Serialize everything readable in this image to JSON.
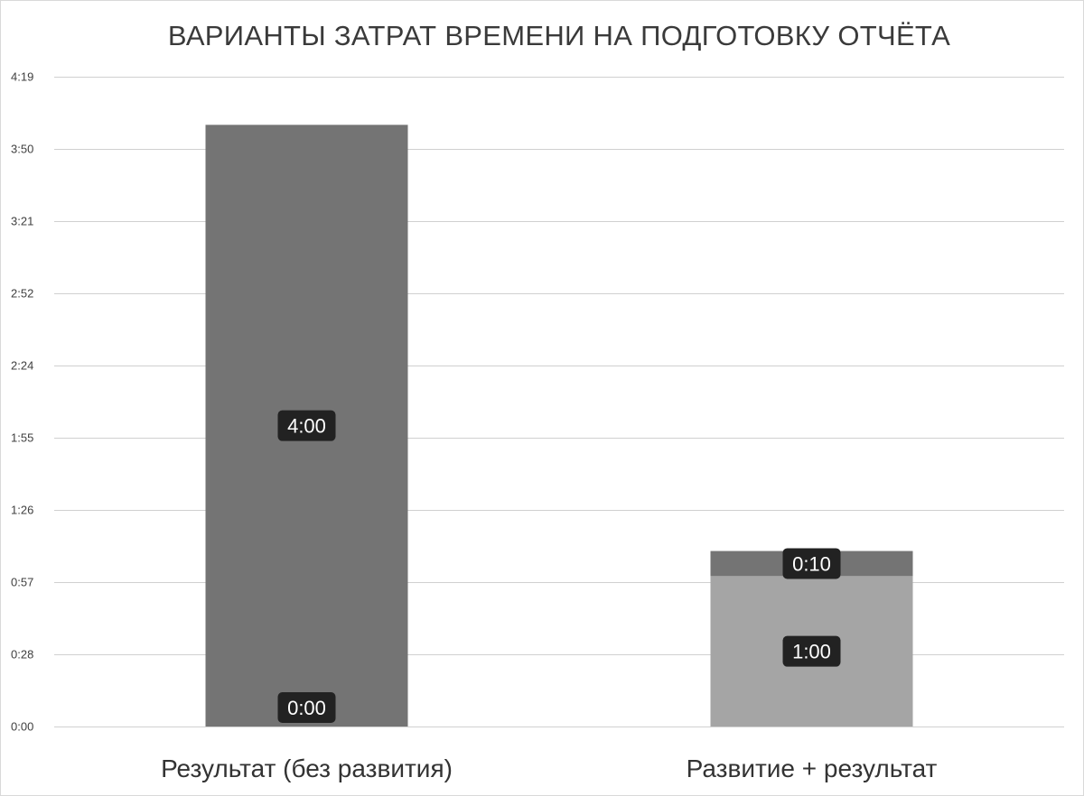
{
  "chart_data": {
    "type": "bar",
    "stacked": true,
    "title": "ВАРИАНТЫ ЗАТРАТ ВРЕМЕНИ НА ПОДГОТОВКУ ОТЧЁТА",
    "xlabel": "",
    "ylabel": "",
    "categories": [
      "Результат (без развития)",
      "Развитие + результат"
    ],
    "y_unit": "minutes",
    "ylim": [
      0,
      259
    ],
    "y_ticks": [
      0,
      28.8,
      57.6,
      86.4,
      115.2,
      144,
      172.8,
      201.6,
      230.4,
      259.2
    ],
    "y_tick_labels": [
      "0:00",
      "0:28",
      "0:57",
      "1:26",
      "1:55",
      "2:24",
      "2:52",
      "3:21",
      "3:50",
      "4:19"
    ],
    "grid": true,
    "legend": "none",
    "series": [
      {
        "values": [
          0,
          60
        ],
        "data_labels": [
          "0:00",
          "1:00"
        ],
        "color": "#a5a5a5"
      },
      {
        "values": [
          240,
          10
        ],
        "data_labels": [
          "4:00",
          "0:10"
        ],
        "color": "#747474"
      }
    ],
    "label_box_color": "#222222",
    "label_text_color": "#ffffff"
  }
}
